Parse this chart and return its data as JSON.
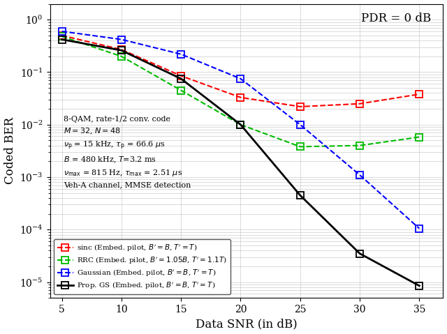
{
  "snr": [
    5,
    10,
    15,
    20,
    25,
    30,
    35
  ],
  "sinc": [
    0.5,
    0.27,
    0.085,
    0.033,
    0.022,
    0.025,
    0.038
  ],
  "rrc": [
    0.48,
    0.2,
    0.045,
    0.01,
    0.0038,
    0.004,
    0.0058
  ],
  "gaussian": [
    0.6,
    0.42,
    0.22,
    0.075,
    0.01,
    0.0011,
    0.000105
  ],
  "prop_gs": [
    0.42,
    0.26,
    0.075,
    0.01,
    0.00045,
    3.5e-05,
    8.5e-06
  ],
  "sinc_color": "#ff0000",
  "rrc_color": "#00bb00",
  "gaussian_color": "#0000ff",
  "prop_gs_color": "#000000",
  "xlabel": "Data SNR (in dB)",
  "ylabel": "Coded BER",
  "pdr_label": "PDR = 0 dB",
  "annotation_line1": "8-QAM, rate-1/2 conv. code",
  "annotation_line2": "$M = 32$, $N = 48$",
  "annotation_line3": "$\\nu_{\\mathrm{p}}$ = 15 kHz, $\\tau_{\\mathrm{p}}$ = 66.6 $\\mu$s",
  "annotation_line4": "$B$ = 480 kHz, $T$=3.2 ms",
  "annotation_line5": "$\\nu_{\\mathrm{max}}$ = 815 Hz, $\\tau_{\\mathrm{max}}$ = 2.51 $\\mu$s",
  "annotation_line6": "Veh-A channel, MMSE detection",
  "legend_sinc": "sinc (Embed. pilot, $B' = B$, $T' = T$)",
  "legend_rrc": "RRC (Embed. pilot, $B' = 1.05B$, $T' = 1.1T$)",
  "legend_gaussian": "Gaussian (Embed. pilot, $B' = B$, $T' = T$)",
  "legend_prop_gs": "Prop. GS (Embed. pilot, $B' = B$, $T' = T$)",
  "ylim_bottom": 5e-06,
  "ylim_top": 2.0,
  "xlim_left": 4,
  "xlim_right": 37,
  "bg_color": "#ffffff"
}
